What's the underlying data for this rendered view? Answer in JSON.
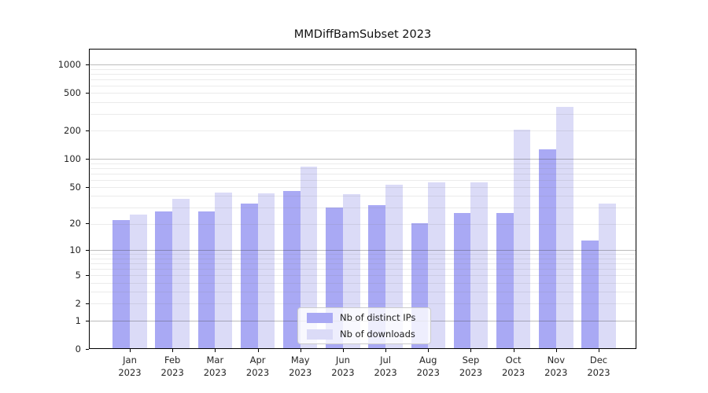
{
  "chart_data": {
    "type": "bar",
    "title": "MMDiffBamSubset 2023",
    "categories": [
      "Jan 2023",
      "Feb 2023",
      "Mar 2023",
      "Apr 2023",
      "May 2023",
      "Jun 2023",
      "Jul 2023",
      "Aug 2023",
      "Sep 2023",
      "Oct 2023",
      "Nov 2023",
      "Dec 2023"
    ],
    "series": [
      {
        "name": "Nb of distinct IPs",
        "color": "#a9a9f4",
        "values": [
          22,
          27,
          27,
          33,
          45,
          30,
          32,
          20,
          26,
          26,
          126,
          13
        ]
      },
      {
        "name": "Nb of downloads",
        "color": "#dbdbf7",
        "values": [
          25,
          37,
          44,
          43,
          83,
          42,
          53,
          56,
          56,
          205,
          355,
          33
        ]
      }
    ],
    "xlabel": "",
    "ylabel": "",
    "yticks": [
      0,
      1,
      2,
      5,
      10,
      20,
      50,
      100,
      200,
      500,
      1000
    ],
    "yscale": "log1p",
    "ylim": [
      0,
      1465
    ],
    "grid": "on",
    "legend_position": "lower center"
  },
  "colors": {
    "background": "#ffffff",
    "axis": "#000000",
    "major_grid": "#b3b3b3",
    "minor_grid": "#e9e9e9",
    "legend_border": "#cccccc"
  }
}
